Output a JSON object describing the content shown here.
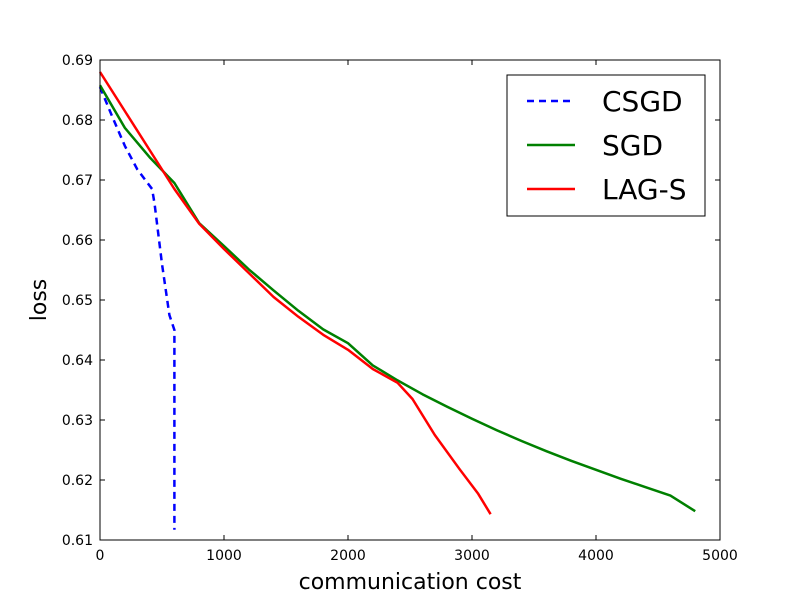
{
  "chart_data": {
    "type": "line",
    "xlabel": "communication cost",
    "ylabel": "loss",
    "xlim": [
      0,
      5000
    ],
    "ylim": [
      0.61,
      0.69
    ],
    "xticks": [
      "0",
      "1000",
      "2000",
      "3000",
      "4000",
      "5000"
    ],
    "yticks": [
      "0.61",
      "0.62",
      "0.63",
      "0.64",
      "0.65",
      "0.66",
      "0.67",
      "0.68",
      "0.69"
    ],
    "grid": false,
    "legend_position": "top-right",
    "series": [
      {
        "name": "CSGD",
        "color": "#0000ff",
        "style": "dashed",
        "x": [
          0,
          100,
          200,
          300,
          420,
          440,
          500,
          560,
          600,
          600
        ],
        "y": [
          0.6855,
          0.6805,
          0.6757,
          0.6718,
          0.6685,
          0.666,
          0.656,
          0.6475,
          0.645,
          0.6117
        ]
      },
      {
        "name": "SGD",
        "color": "#008000",
        "style": "solid",
        "x": [
          0,
          200,
          400,
          600,
          800,
          1000,
          1200,
          1400,
          1600,
          1800,
          2000,
          2200,
          2400,
          2600,
          2800,
          3000,
          3200,
          3400,
          3600,
          3800,
          4000,
          4200,
          4400,
          4600,
          4800
        ],
        "y": [
          0.6858,
          0.6787,
          0.6738,
          0.6695,
          0.6628,
          0.659,
          0.6551,
          0.6516,
          0.6482,
          0.6451,
          0.6428,
          0.6391,
          0.6366,
          0.6343,
          0.6322,
          0.6302,
          0.6283,
          0.6265,
          0.6248,
          0.6232,
          0.6217,
          0.6202,
          0.6188,
          0.6174,
          0.6148
        ]
      },
      {
        "name": "LAG-S",
        "color": "#ff0000",
        "style": "solid",
        "x": [
          0,
          200,
          400,
          600,
          800,
          1000,
          1200,
          1400,
          1600,
          1800,
          2000,
          2200,
          2400,
          2520,
          2700,
          2900,
          3050,
          3150
        ],
        "y": [
          0.688,
          0.6815,
          0.675,
          0.6685,
          0.6627,
          0.6585,
          0.6545,
          0.6505,
          0.6472,
          0.6442,
          0.6417,
          0.6385,
          0.6362,
          0.6335,
          0.6275,
          0.6218,
          0.6177,
          0.6143
        ]
      }
    ]
  }
}
